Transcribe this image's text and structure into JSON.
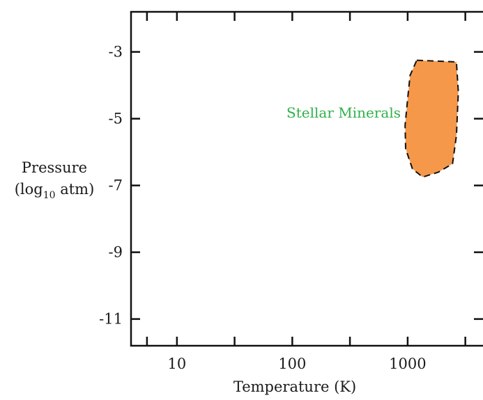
{
  "chart_data": {
    "type": "area",
    "xlabel": "Temperature (K)",
    "ylabel_line1": "Pressure",
    "ylabel_line2_prefix": "(log",
    "ylabel_line2_sub": "10",
    "ylabel_line2_suffix": " atm)",
    "xscale": "log",
    "xlim": [
      4,
      4500
    ],
    "ylim": [
      -11.8,
      -1.8
    ],
    "x_ticks": [
      {
        "value": 10,
        "label": "10"
      },
      {
        "value": 100,
        "label": "100"
      },
      {
        "value": 1000,
        "label": "1000"
      }
    ],
    "x_minor_ticks": [
      5.5,
      31.6,
      316,
      3162
    ],
    "y_ticks": [
      {
        "value": -3,
        "label": "-3"
      },
      {
        "value": -5,
        "label": "-5"
      },
      {
        "value": -7,
        "label": "-7"
      },
      {
        "value": -9,
        "label": "-9"
      },
      {
        "value": -11,
        "label": "-11"
      }
    ],
    "grid": false,
    "regions": [
      {
        "name": "Stellar Minerals",
        "color": "#f5984a",
        "outline": "dashed",
        "points": [
          [
            1200,
            -3.25
          ],
          [
            2650,
            -3.3
          ],
          [
            2750,
            -4.2
          ],
          [
            2650,
            -5.5
          ],
          [
            2450,
            -6.35
          ],
          [
            1850,
            -6.6
          ],
          [
            1350,
            -6.75
          ],
          [
            1100,
            -6.5
          ],
          [
            960,
            -5.9
          ],
          [
            950,
            -5.2
          ],
          [
            1000,
            -4.4
          ],
          [
            1050,
            -3.7
          ]
        ]
      }
    ]
  }
}
